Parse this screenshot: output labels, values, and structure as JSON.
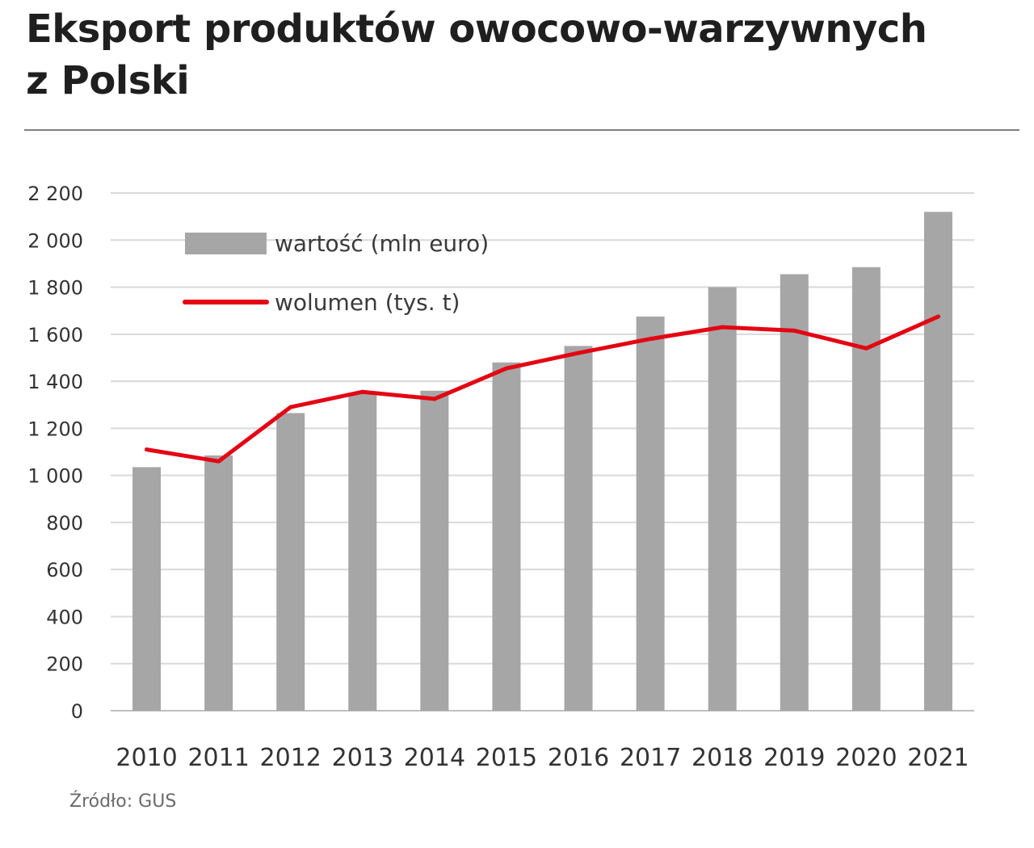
{
  "title_lines": [
    "Eksport produktów owocowo-warzywnych",
    "z Polski"
  ],
  "source": "Źródło: GUS",
  "colors": {
    "bar": "#a6a6a6",
    "line": "#e30613",
    "grid": "#d9d9d9",
    "text": "#333333"
  },
  "chart_data": {
    "type": "bar",
    "title": "Eksport produktów owocowo-warzywnych z Polski",
    "categories": [
      "2010",
      "2011",
      "2012",
      "2013",
      "2014",
      "2015",
      "2016",
      "2017",
      "2018",
      "2019",
      "2020",
      "2021"
    ],
    "series": [
      {
        "name": "wartość (mln euro)",
        "type": "bar",
        "values": [
          1035,
          1085,
          1265,
          1350,
          1360,
          1480,
          1550,
          1675,
          1800,
          1855,
          1885,
          2120
        ]
      },
      {
        "name": "wolumen (tys. t)",
        "type": "line",
        "values": [
          1110,
          1060,
          1290,
          1355,
          1325,
          1455,
          1520,
          1580,
          1630,
          1615,
          1540,
          1675
        ]
      }
    ],
    "ylim": [
      0,
      2200
    ],
    "yticks": [
      0,
      200,
      400,
      600,
      800,
      1000,
      1200,
      1400,
      1600,
      1800,
      2000,
      2200
    ],
    "ytick_labels": [
      "0",
      "200",
      "400",
      "600",
      "800",
      "1 000",
      "1 200",
      "1 400",
      "1 600",
      "1 800",
      "2 000",
      "2 200"
    ],
    "xlabel": "",
    "ylabel": "",
    "grid": true,
    "legend_position": "top-left"
  }
}
